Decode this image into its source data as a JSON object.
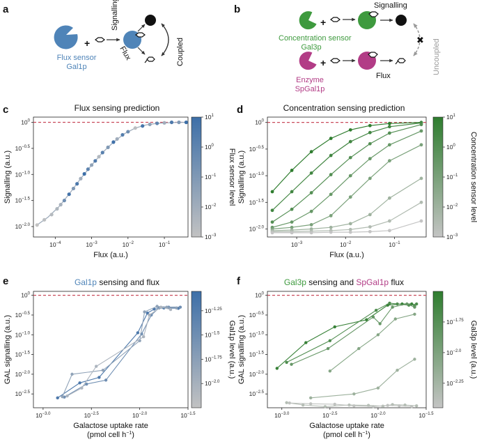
{
  "panel_letters": [
    "a",
    "b",
    "c",
    "d",
    "e",
    "f"
  ],
  "diagram_a": {
    "sensor_label": [
      "Flux sensor",
      "Gal1p"
    ],
    "signalling": "Signalling",
    "flux": "Flux",
    "coupled": "Coupled",
    "colors": {
      "sensor": "#4f84b8",
      "product": "#111111"
    }
  },
  "diagram_b": {
    "sensor_label": [
      "Concentration sensor",
      "Gal3p"
    ],
    "enzyme_label": [
      "Enzyme",
      "SpGal1p"
    ],
    "signalling": "Signalling",
    "flux": "Flux",
    "uncoupled": "Uncoupled",
    "colors": {
      "sensor": "#3e9a3e",
      "enzyme": "#b23c86",
      "muted": "#9a9a9a"
    }
  },
  "chart_data": [
    {
      "id": "c",
      "type": "scatter",
      "title": "Flux sensing prediction",
      "title_parts": [
        {
          "text": "Flux sensing prediction",
          "color": "#111111"
        }
      ],
      "xlabel": "Flux (a.u.)",
      "ylabel": "Signalling (a.u.)",
      "x_scale": "log10",
      "xlim_log": [
        -4.6,
        -0.35
      ],
      "ylim_log": [
        -2.2,
        0.1
      ],
      "xticks": [
        {
          "exp": "-4",
          "label": "10"
        },
        {
          "exp": "-3",
          "label": "10"
        },
        {
          "exp": "-2",
          "label": "10"
        },
        {
          "exp": "-1",
          "label": "10"
        }
      ],
      "xtick_exps": [
        "−4",
        "−3",
        "−2",
        "−1"
      ],
      "xtick_vals": [
        -4,
        -3,
        -2,
        -1
      ],
      "yticks_vals": [
        0,
        -0.5,
        -1,
        -1.5,
        -2
      ],
      "ytick_exps": [
        "0",
        "−0.5",
        "−1.0",
        "−1.5",
        "−2.0"
      ],
      "reference_line": 0,
      "colorbar": {
        "label": "Flux sensor level",
        "ticks_exp": [
          "1",
          "0",
          "−1",
          "−2",
          "−3"
        ],
        "ticks_vals": [
          1,
          0,
          -1,
          -2,
          -3
        ],
        "range": [
          -3,
          1
        ],
        "low": "#c2c2c2",
        "high": "#3d6fa8"
      },
      "line_x": [
        -4.5,
        -4.2,
        -3.9,
        -3.6,
        -3.3,
        -3.0,
        -2.7,
        -2.4,
        -2.1,
        -1.8,
        -1.5,
        -1.2,
        -0.9,
        -0.6,
        -0.4
      ],
      "line_y": [
        -1.97,
        -1.82,
        -1.62,
        -1.36,
        -1.08,
        -0.82,
        -0.58,
        -0.38,
        -0.22,
        -0.11,
        -0.05,
        -0.02,
        -0.01,
        0.0,
        0.0
      ],
      "points": [
        {
          "x": -4.5,
          "y": -1.97,
          "c": -3
        },
        {
          "x": -4.3,
          "y": -1.87,
          "c": -2.8
        },
        {
          "x": -4.1,
          "y": -1.77,
          "c": -2.6
        },
        {
          "x": -3.95,
          "y": -1.66,
          "c": -2.4
        },
        {
          "x": -3.85,
          "y": -1.58,
          "c": -2.2
        },
        {
          "x": -3.75,
          "y": -1.5,
          "c": -0.5
        },
        {
          "x": -3.62,
          "y": -1.38,
          "c": 0.8
        },
        {
          "x": -3.5,
          "y": -1.27,
          "c": -1
        },
        {
          "x": -3.4,
          "y": -1.18,
          "c": 0.6
        },
        {
          "x": -3.3,
          "y": -1.08,
          "c": -2
        },
        {
          "x": -3.2,
          "y": -0.99,
          "c": 1
        },
        {
          "x": -3.1,
          "y": -0.9,
          "c": 0
        },
        {
          "x": -3.0,
          "y": -0.82,
          "c": -1.5
        },
        {
          "x": -2.9,
          "y": -0.74,
          "c": 0.5
        },
        {
          "x": -2.8,
          "y": -0.66,
          "c": -2.5
        },
        {
          "x": -2.7,
          "y": -0.58,
          "c": 0.2
        },
        {
          "x": -2.55,
          "y": -0.48,
          "c": -1
        },
        {
          "x": -2.4,
          "y": -0.38,
          "c": 0.9
        },
        {
          "x": -2.3,
          "y": -0.32,
          "c": -2
        },
        {
          "x": -2.15,
          "y": -0.24,
          "c": 0.3
        },
        {
          "x": -2.0,
          "y": -0.18,
          "c": -0.5
        },
        {
          "x": -1.8,
          "y": -0.11,
          "c": -2.8
        },
        {
          "x": -1.6,
          "y": -0.07,
          "c": 0.7
        },
        {
          "x": -1.4,
          "y": -0.04,
          "c": -1.5
        },
        {
          "x": -1.2,
          "y": -0.02,
          "c": 0
        },
        {
          "x": -1.0,
          "y": -0.01,
          "c": -2
        },
        {
          "x": -0.8,
          "y": 0.0,
          "c": 0.5
        },
        {
          "x": -0.6,
          "y": 0.0,
          "c": -1
        },
        {
          "x": -0.4,
          "y": 0.0,
          "c": 1
        }
      ]
    },
    {
      "id": "d",
      "type": "line",
      "title": "Concentration sensing prediction",
      "title_parts": [
        {
          "text": "Concentration sensing prediction",
          "color": "#111111"
        }
      ],
      "xlabel": "Flux (a.u.)",
      "ylabel": "Signalling (a.u.)",
      "x_scale": "log10",
      "xlim_log": [
        -3.6,
        -0.35
      ],
      "ylim_log": [
        -2.15,
        0.1
      ],
      "xtick_exps": [
        "−3",
        "−2",
        "−1"
      ],
      "xtick_vals": [
        -3,
        -2,
        -1
      ],
      "yticks_vals": [
        0,
        -0.5,
        -1,
        -1.5,
        -2
      ],
      "ytick_exps": [
        "0",
        "−0.5",
        "−1.0",
        "−1.5",
        "−2.0"
      ],
      "reference_line": 0,
      "colorbar": {
        "label": "Concentration sensor level",
        "ticks_exp": [
          "1",
          "0",
          "−1",
          "−2",
          "−3"
        ],
        "ticks_vals": [
          1,
          0,
          -1,
          -2,
          -3
        ],
        "range": [
          -3,
          1
        ],
        "low": "#c4c4c4",
        "high": "#2f7d2f"
      },
      "x": [
        -3.5,
        -3.1,
        -2.7,
        -2.3,
        -1.9,
        -1.5,
        -1.1,
        -0.45
      ],
      "series": [
        {
          "name": "level 1",
          "c": 1,
          "values": [
            -1.3,
            -0.9,
            -0.55,
            -0.3,
            -0.14,
            -0.06,
            -0.02,
            0.0
          ]
        },
        {
          "name": "level 0.5",
          "c": 0.5,
          "values": [
            -1.65,
            -1.3,
            -0.95,
            -0.62,
            -0.36,
            -0.19,
            -0.08,
            -0.01
          ]
        },
        {
          "name": "level 0",
          "c": 0,
          "values": [
            -1.87,
            -1.63,
            -1.32,
            -0.98,
            -0.66,
            -0.4,
            -0.2,
            -0.04
          ]
        },
        {
          "name": "level -0.5",
          "c": -0.5,
          "values": [
            -1.97,
            -1.87,
            -1.67,
            -1.35,
            -1.0,
            -0.68,
            -0.42,
            -0.16
          ]
        },
        {
          "name": "level -1",
          "c": -1,
          "values": [
            -2.0,
            -1.97,
            -1.92,
            -1.75,
            -1.4,
            -1.05,
            -0.72,
            -0.42
          ]
        },
        {
          "name": "level -2",
          "c": -2,
          "values": [
            -2.03,
            -2.02,
            -2.0,
            -1.97,
            -1.9,
            -1.73,
            -1.42,
            -1.05
          ]
        },
        {
          "name": "level -2.5",
          "c": -2.5,
          "values": [
            -2.05,
            -2.05,
            -2.04,
            -2.03,
            -2.01,
            -1.96,
            -1.85,
            -1.5
          ]
        },
        {
          "name": "level -3",
          "c": -3,
          "values": [
            -2.07,
            -2.07,
            -2.07,
            -2.06,
            -2.06,
            -2.05,
            -2.03,
            -1.85
          ]
        }
      ]
    },
    {
      "id": "e",
      "type": "line",
      "title": "Gal1p sensing and flux",
      "title_parts": [
        {
          "text": "Gal1p",
          "color": "#4f84b8"
        },
        {
          "text": " sensing and flux",
          "color": "#111111"
        }
      ],
      "xlabel": "Galactose uptake rate",
      "xlabel2": "(pmol cell h",
      "xlabel2_sup": "−1",
      "xlabel2_end": ")",
      "ylabel": "GAL signalling (a.u.)",
      "x_scale": "log10",
      "xlim_log": [
        -3.1,
        -1.5
      ],
      "ylim_log": [
        -2.85,
        0.1
      ],
      "xtick_exps": [
        "−3.0",
        "−2.5",
        "−2.0",
        "−1.5"
      ],
      "xtick_vals": [
        -3,
        -2.5,
        -2,
        -1.5
      ],
      "yticks_vals": [
        0,
        -0.5,
        -1,
        -1.5,
        -2,
        -2.5
      ],
      "ytick_exps": [
        "0",
        "−0.5",
        "−1.0",
        "−1.5",
        "−2.0",
        "−2.5"
      ],
      "reference_line": 0,
      "colorbar": {
        "label": "Gal1p level (a.u.)",
        "ticks_exp": [
          "−1.25",
          "−1.5",
          "−1.75",
          "−2.0"
        ],
        "ticks_vals": [
          -1.25,
          -1.5,
          -1.75,
          -2.0
        ],
        "range": [
          -2.25,
          -1.05
        ],
        "low": "#c2c2c2",
        "high": "#3d6fa8"
      },
      "series": [
        {
          "name": "rep 1",
          "c": -1.2,
          "x": [
            -2.85,
            -2.62,
            -2.42,
            -2.02,
            -1.92,
            -1.85,
            -1.75,
            -1.6
          ],
          "y": [
            -2.6,
            -2.22,
            -2.08,
            -0.95,
            -0.45,
            -0.35,
            -0.32,
            -0.33
          ]
        },
        {
          "name": "rep 2",
          "c": -1.5,
          "x": [
            -2.78,
            -2.55,
            -2.35,
            -1.98,
            -1.88,
            -1.8,
            -1.7,
            -1.58
          ],
          "y": [
            -2.58,
            -2.25,
            -2.15,
            -0.98,
            -0.5,
            -0.32,
            -0.3,
            -0.3
          ]
        },
        {
          "name": "rep 3",
          "c": -1.8,
          "x": [
            -2.8,
            -2.7,
            -2.38,
            -2.0,
            -1.95,
            -1.82,
            -1.72,
            -1.62
          ],
          "y": [
            -2.57,
            -2.0,
            -1.9,
            -1.15,
            -0.42,
            -0.28,
            -0.3,
            -0.32
          ]
        },
        {
          "name": "rep 4",
          "c": -2.05,
          "x": [
            -2.75,
            -2.6,
            -2.45,
            -1.96,
            -1.9,
            -1.78,
            -1.68
          ],
          "y": [
            -2.55,
            -2.35,
            -1.8,
            -1.05,
            -0.5,
            -0.3,
            -0.36
          ]
        }
      ]
    },
    {
      "id": "f",
      "type": "line",
      "title": "Gal3p sensing and SpGal1p flux",
      "title_parts": [
        {
          "text": "Gal3p",
          "color": "#3e9a3e"
        },
        {
          "text": " sensing and ",
          "color": "#111111"
        },
        {
          "text": "SpGal1p",
          "color": "#b23c86"
        },
        {
          "text": " flux",
          "color": "#111111"
        }
      ],
      "xlabel": "Galactose uptake rate",
      "xlabel2": "(pmol cell h",
      "xlabel2_sup": "−1",
      "xlabel2_end": ")",
      "ylabel": "GAL signalling (a.u.)",
      "x_scale": "log10",
      "xlim_log": [
        -3.15,
        -1.5
      ],
      "ylim_log": [
        -2.85,
        0.1
      ],
      "xtick_exps": [
        "−3.0",
        "−2.5",
        "−2.0",
        "−1.5"
      ],
      "xtick_vals": [
        -3,
        -2.5,
        -2,
        -1.5
      ],
      "yticks_vals": [
        0,
        -0.5,
        -1,
        -1.5,
        -2,
        -2.5
      ],
      "ytick_exps": [
        "0",
        "−0.5",
        "−1.0",
        "−1.5",
        "−2.0",
        "−2.5"
      ],
      "reference_line": 0,
      "colorbar": {
        "label": "Gal3p level (a.u.)",
        "ticks_exp": [
          "−1.75",
          "−2.0",
          "−2.25"
        ],
        "ticks_vals": [
          -1.75,
          -2.0,
          -2.25
        ],
        "range": [
          -2.45,
          -1.5
        ],
        "low": "#c4c4c4",
        "high": "#2f7d2f"
      },
      "series": [
        {
          "name": "rep 1",
          "c": -1.55,
          "x": [
            -3.05,
            -2.75,
            -2.45,
            -2.12,
            -1.9,
            -1.75,
            -1.65,
            -1.62
          ],
          "y": [
            -1.85,
            -1.2,
            -0.8,
            -0.62,
            -0.25,
            -0.22,
            -0.22,
            -0.28
          ]
        },
        {
          "name": "rep 2",
          "c": -1.7,
          "x": [
            -2.95,
            -2.5,
            -2.02,
            -1.88,
            -1.8,
            -1.68,
            -1.6
          ],
          "y": [
            -1.7,
            -1.15,
            -0.38,
            -0.2,
            -0.22,
            -0.25,
            -0.22
          ]
        },
        {
          "name": "rep 3",
          "c": -1.85,
          "x": [
            -2.9,
            -2.52,
            -2.05,
            -1.98,
            -1.85,
            -1.7,
            -1.62
          ],
          "y": [
            -1.75,
            -1.35,
            -0.55,
            -0.72,
            -0.3,
            -0.22,
            -0.3
          ]
        },
        {
          "name": "rep 4",
          "c": -2.05,
          "x": [
            -2.5,
            -2.2,
            -2.0,
            -1.82,
            -1.62
          ],
          "y": [
            -1.92,
            -1.35,
            -1.0,
            -0.6,
            -0.48
          ]
        },
        {
          "name": "rep 5",
          "c": -2.2,
          "x": [
            -2.7,
            -2.25,
            -2.0,
            -1.8,
            -1.62
          ],
          "y": [
            -2.6,
            -2.5,
            -2.35,
            -1.9,
            -1.62
          ]
        },
        {
          "name": "rep 6",
          "c": -2.35,
          "x": [
            -2.95,
            -2.78,
            -2.55,
            -2.3,
            -2.1,
            -1.95,
            -1.85,
            -1.72,
            -1.6
          ],
          "y": [
            -2.72,
            -2.78,
            -2.82,
            -2.78,
            -2.79,
            -2.81,
            -2.77,
            -2.78,
            -2.8
          ]
        },
        {
          "name": "rep 7",
          "c": -2.42,
          "x": [
            -2.92,
            -2.7,
            -2.45,
            -2.25,
            -2.05,
            -1.9,
            -1.78,
            -1.65
          ],
          "y": [
            -2.73,
            -2.75,
            -2.76,
            -2.8,
            -2.82,
            -2.79,
            -2.8,
            -2.82
          ]
        }
      ]
    }
  ]
}
